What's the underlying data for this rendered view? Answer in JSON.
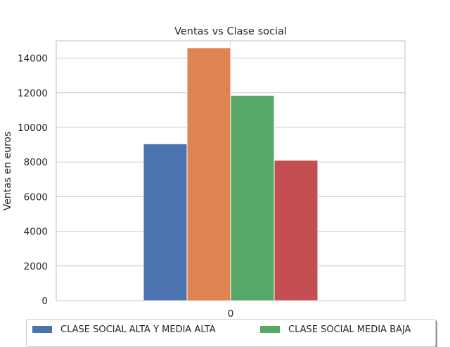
{
  "chart_data": {
    "type": "bar",
    "title": "Ventas vs Clase social",
    "xlabel": "",
    "ylabel": "Ventas en euros",
    "categories": [
      "0"
    ],
    "ylim": [
      0,
      15000
    ],
    "yticks": [
      0,
      2000,
      4000,
      6000,
      8000,
      10000,
      12000,
      14000
    ],
    "grid": true,
    "legend_position": "bottom",
    "series": [
      {
        "name": "CLASE SOCIAL ALTA Y MEDIA ALTA",
        "values": [
          9050
        ],
        "color": "#4c72b0"
      },
      {
        "name": "",
        "values": [
          14600
        ],
        "color": "#dd8452"
      },
      {
        "name": "CLASE SOCIAL MEDIA BAJA",
        "values": [
          11850
        ],
        "color": "#55a868"
      },
      {
        "name": "",
        "values": [
          8100
        ],
        "color": "#c44e52"
      }
    ]
  }
}
